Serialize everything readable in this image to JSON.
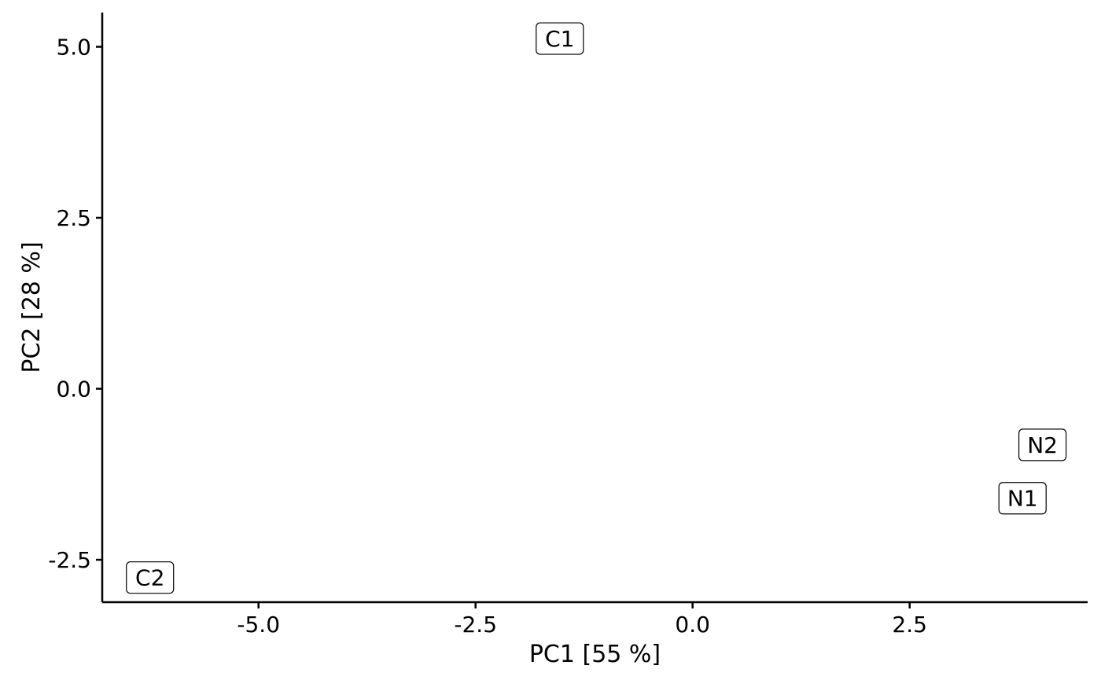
{
  "chart_data": {
    "type": "scatter",
    "xlabel": "PC1 [55 %]",
    "ylabel": "PC2 [28 %]",
    "xlim": [
      -6.8,
      4.55
    ],
    "ylim": [
      -3.12,
      5.5
    ],
    "x_ticks": [
      -5.0,
      -2.5,
      0.0,
      2.5
    ],
    "x_tick_labels": [
      "-5.0",
      "-2.5",
      "0.0",
      "2.5"
    ],
    "y_ticks": [
      -2.5,
      0.0,
      2.5,
      5.0
    ],
    "y_tick_labels": [
      "-2.5",
      "0.0",
      "2.5",
      "5.0"
    ],
    "grid": false,
    "points": [
      {
        "label": "C1",
        "x": -1.53,
        "y": 5.12
      },
      {
        "label": "C2",
        "x": -6.25,
        "y": -2.76
      },
      {
        "label": "N1",
        "x": 3.8,
        "y": -1.6
      },
      {
        "label": "N2",
        "x": 4.03,
        "y": -0.82
      }
    ]
  }
}
